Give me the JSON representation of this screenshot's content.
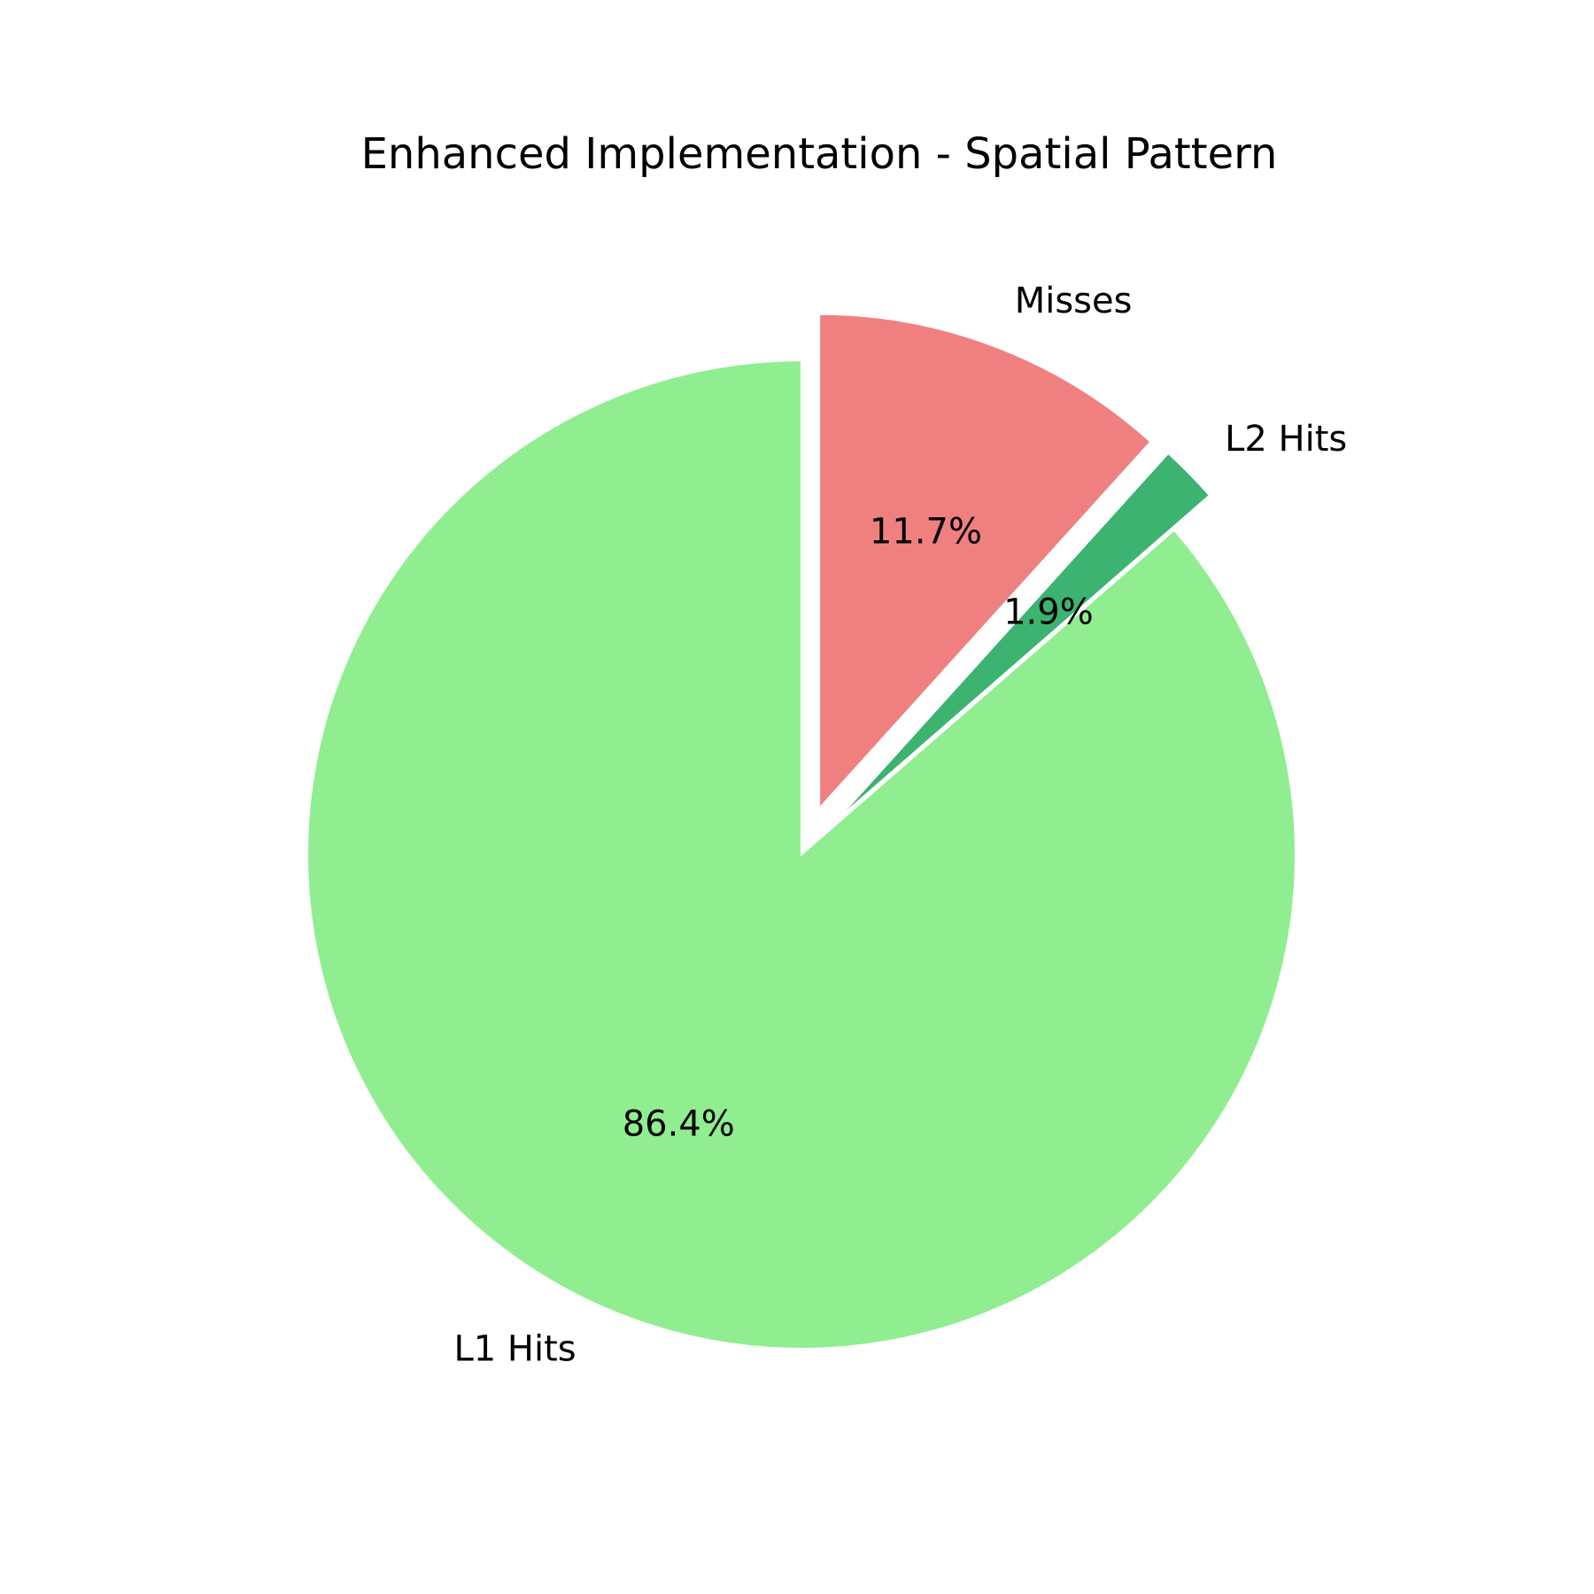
{
  "chart_data": {
    "type": "pie",
    "title": "Enhanced Implementation - Spatial Pattern",
    "start_angle_deg": 90,
    "direction": "clockwise",
    "labels": [
      "Misses",
      "L2 Hits",
      "L1 Hits"
    ],
    "values": [
      11.7,
      1.9,
      86.4
    ],
    "percent_labels": [
      "11.7%",
      "1.9%",
      "86.4%"
    ],
    "colors": [
      "#f08080",
      "#3cb371",
      "#90ee90"
    ],
    "exploded": [
      "Misses",
      "L2 Hits"
    ],
    "edge_color": "#ffffff"
  }
}
